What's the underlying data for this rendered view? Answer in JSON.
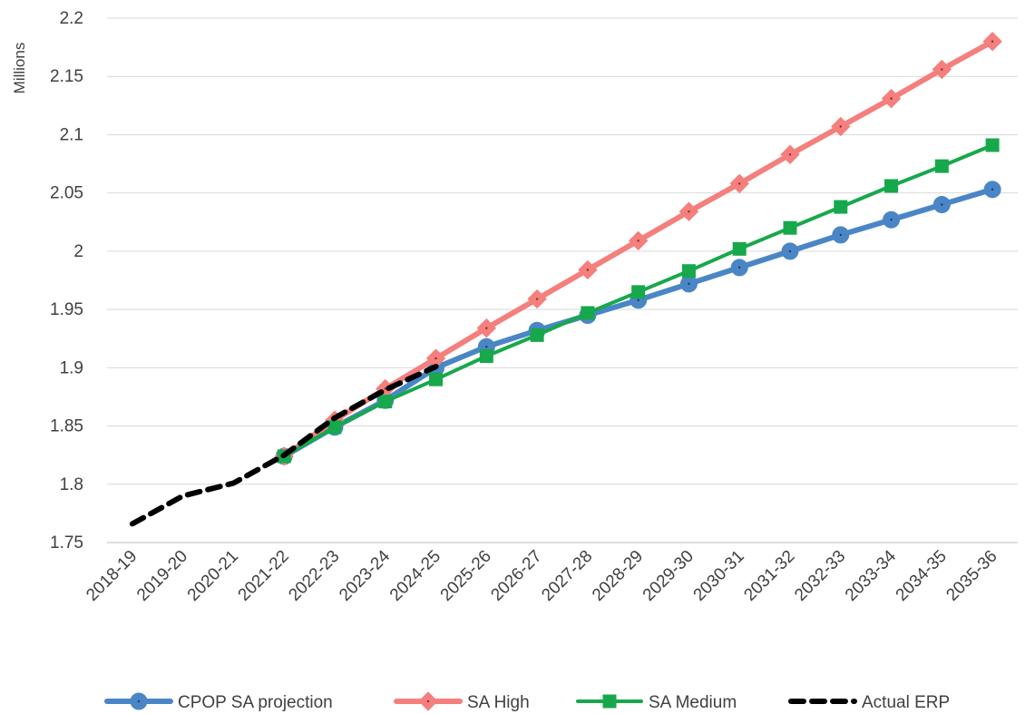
{
  "chart_data": {
    "type": "line",
    "title": "",
    "xlabel": "",
    "ylabel": "Millions",
    "ylim": [
      1.75,
      2.2
    ],
    "yticks": [
      "1.75",
      "1.8",
      "1.85",
      "1.9",
      "1.95",
      "2",
      "2.05",
      "2.1",
      "2.15",
      "2.2"
    ],
    "grid": "horizontal",
    "legend_position": "bottom",
    "categories": [
      "2018-19",
      "2019-20",
      "2020-21",
      "2021-22",
      "2022-23",
      "2023-24",
      "2024-25",
      "2025-26",
      "2026-27",
      "2027-28",
      "2028-29",
      "2029-30",
      "2030-31",
      "2031-32",
      "2032-33",
      "2033-34",
      "2034-35",
      "2035-36"
    ],
    "series": [
      {
        "name": "CPOP SA projection",
        "color": "#4a86c6",
        "marker": "circle",
        "dash": "solid",
        "values": [
          null,
          null,
          null,
          1.824,
          1.849,
          1.872,
          1.9,
          1.918,
          1.932,
          1.945,
          1.958,
          1.972,
          1.986,
          2.0,
          2.014,
          2.027,
          2.04,
          2.053
        ]
      },
      {
        "name": "SA High",
        "color": "#f47f7d",
        "marker": "diamond",
        "dash": "solid",
        "values": [
          null,
          null,
          null,
          1.824,
          1.855,
          1.882,
          1.908,
          1.934,
          1.959,
          1.984,
          2.009,
          2.034,
          2.058,
          2.083,
          2.107,
          2.131,
          2.156,
          2.18
        ]
      },
      {
        "name": "SA Medium",
        "color": "#17a84b",
        "marker": "square",
        "dash": "solid",
        "values": [
          null,
          null,
          null,
          1.824,
          1.849,
          1.871,
          1.89,
          1.91,
          1.928,
          1.947,
          1.965,
          1.983,
          2.002,
          2.02,
          2.038,
          2.056,
          2.073,
          2.091
        ]
      },
      {
        "name": "Actual ERP",
        "color": "#000000",
        "marker": "none",
        "dash": "dashed",
        "values": [
          1.766,
          1.79,
          1.801,
          1.825,
          1.857,
          1.881,
          1.901,
          null,
          null,
          null,
          null,
          null,
          null,
          null,
          null,
          null,
          null,
          null
        ]
      }
    ]
  }
}
